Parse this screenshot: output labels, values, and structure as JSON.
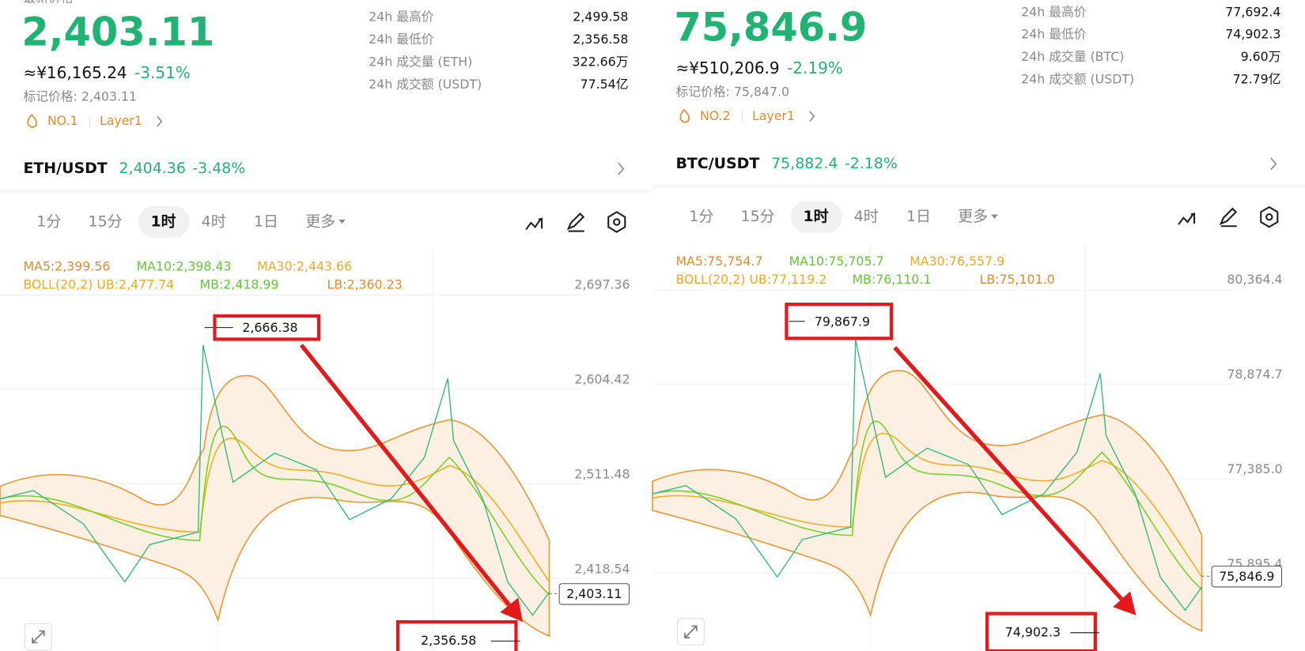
{
  "panels": [
    {
      "price_caption": "最新价格",
      "price": "2,403.11",
      "cny": "≈¥16,165.24",
      "change": "-3.51%",
      "mark_price": "标记价格: 2,403.11",
      "rank": "NO.1",
      "tag": "Layer1",
      "stats": [
        [
          "24h 最高价",
          "2,499.58"
        ],
        [
          "24h 最低价",
          "2,356.58"
        ],
        [
          "24h 成交量 (ETH)",
          "322.66万"
        ],
        [
          "24h 成交额 (USDT)",
          "77.54亿"
        ]
      ],
      "pair": "ETH/USDT",
      "pair_price": "2,404.36",
      "pair_change": "-3.48%",
      "intervals": [
        "1分",
        "15分",
        "1时",
        "4时",
        "1日",
        "更多"
      ],
      "ma": [
        "MA5:2,399.56",
        "MA10:2,398.43",
        "MA30:2,443.66"
      ],
      "boll": [
        "BOLL(20,2) UB:2,477.74",
        "MB:2,418.99",
        "LB:2,360.23"
      ],
      "axis": [
        "2,697.36",
        "2,604.42",
        "2,511.48",
        "2,418.54"
      ],
      "last": "2,403.11",
      "high": "2,666.38",
      "low": "2,356.58"
    },
    {
      "price": "75,846.9",
      "cny": "≈¥510,206.9",
      "change": "-2.19%",
      "mark_price": "标记价格: 75,847.0",
      "rank": "NO.2",
      "tag": "Layer1",
      "stats": [
        [
          "24h 最高价",
          "77,692.4"
        ],
        [
          "24h 最低价",
          "74,902.3"
        ],
        [
          "24h 成交量 (BTC)",
          "9.60万"
        ],
        [
          "24h 成交额 (USDT)",
          "72.79亿"
        ]
      ],
      "pair": "BTC/USDT",
      "pair_price": "75,882.4",
      "pair_change": "-2.18%",
      "intervals": [
        "1分",
        "15分",
        "1时",
        "4时",
        "1日",
        "更多"
      ],
      "ma": [
        "MA5:75,754.7",
        "MA10:75,705.7",
        "MA30:76,557.9"
      ],
      "boll": [
        "BOLL(20,2) UB:77,119.2",
        "MB:76,110.1",
        "LB:75,101.0"
      ],
      "axis": [
        "80,364.4",
        "78,874.7",
        "77,385.0",
        "75,895.4"
      ],
      "last": "75,846.9",
      "high": "79,867.9",
      "low": "74,902.3"
    }
  ]
}
